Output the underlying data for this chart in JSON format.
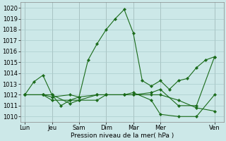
{
  "xlabel": "Pression niveau de la mer( hPa )",
  "ylim": [
    1009.5,
    1020.5
  ],
  "yticks": [
    1010,
    1011,
    1012,
    1013,
    1014,
    1015,
    1016,
    1017,
    1018,
    1019,
    1020
  ],
  "background_color": "#cce8e8",
  "grid_color": "#aacccc",
  "line_color": "#1a6b1a",
  "xtick_labels": [
    "Lun",
    "Jeu",
    "Sam",
    "Dim",
    "Mar",
    "Mer",
    "Ven"
  ],
  "xtick_positions": [
    0,
    6,
    12,
    18,
    24,
    30,
    42
  ],
  "xlim": [
    -1,
    44
  ],
  "vlines": [
    0,
    6,
    12,
    18,
    24,
    30,
    42
  ],
  "lines": [
    {
      "x": [
        0,
        2,
        4,
        6,
        8,
        10,
        12,
        14,
        16,
        18,
        20,
        22,
        24,
        26,
        28,
        30,
        32,
        34,
        36,
        38,
        40,
        42
      ],
      "y": [
        1012.0,
        1013.2,
        1013.8,
        1012.0,
        1011.0,
        1011.5,
        1011.8,
        1015.2,
        1016.7,
        1018.0,
        1019.0,
        1019.85,
        1017.7,
        1013.3,
        1012.8,
        1013.3,
        1012.5,
        1013.3,
        1013.5,
        1014.5,
        1015.2,
        1015.5
      ]
    },
    {
      "x": [
        0,
        4,
        6,
        10,
        12,
        16,
        18,
        22,
        24,
        28,
        30,
        34,
        38,
        42
      ],
      "y": [
        1012.0,
        1012.0,
        1012.0,
        1011.2,
        1011.5,
        1011.5,
        1012.0,
        1012.0,
        1012.0,
        1012.0,
        1012.0,
        1011.5,
        1010.8,
        1010.5
      ]
    },
    {
      "x": [
        0,
        4,
        6,
        10,
        12,
        16,
        18,
        22,
        24,
        28,
        30,
        34,
        38,
        42
      ],
      "y": [
        1012.0,
        1012.0,
        1011.5,
        1011.5,
        1011.5,
        1012.0,
        1012.0,
        1012.0,
        1012.2,
        1011.5,
        1010.2,
        1010.0,
        1010.0,
        1012.0
      ]
    },
    {
      "x": [
        0,
        4,
        6,
        10,
        12,
        16,
        18,
        22,
        24,
        28,
        30,
        34,
        38,
        42
      ],
      "y": [
        1012.0,
        1012.0,
        1011.8,
        1012.0,
        1011.8,
        1012.0,
        1012.0,
        1012.0,
        1012.0,
        1012.2,
        1012.5,
        1011.0,
        1011.0,
        1015.5
      ]
    }
  ]
}
